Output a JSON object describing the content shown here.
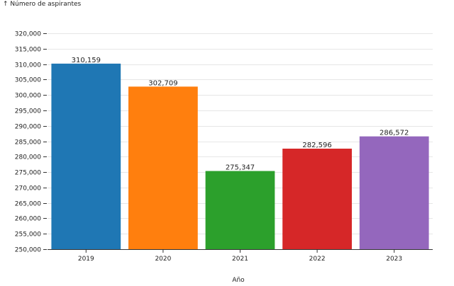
{
  "chart_data": {
    "type": "bar",
    "title": "",
    "ylabel": "↑ Número de aspirantes",
    "xlabel": "Año",
    "categories": [
      "2019",
      "2020",
      "2021",
      "2022",
      "2023"
    ],
    "values": [
      310159,
      302709,
      275347,
      282596,
      286572
    ],
    "value_labels": [
      "310,159",
      "302,709",
      "275,347",
      "282,596",
      "286,572"
    ],
    "colors": [
      "#1f77b4",
      "#ff7f0e",
      "#2ca02c",
      "#d62728",
      "#9467bd"
    ],
    "ylim": [
      250000,
      320000
    ],
    "yticks": [
      250000,
      255000,
      260000,
      265000,
      270000,
      275000,
      280000,
      285000,
      290000,
      295000,
      300000,
      305000,
      310000,
      315000,
      320000
    ],
    "ytick_labels": [
      "250,000",
      "255,000",
      "260,000",
      "265,000",
      "270,000",
      "275,000",
      "280,000",
      "285,000",
      "290,000",
      "295,000",
      "300,000",
      "305,000",
      "310,000",
      "315,000",
      "320,000"
    ],
    "grid": true,
    "legend": "none"
  }
}
